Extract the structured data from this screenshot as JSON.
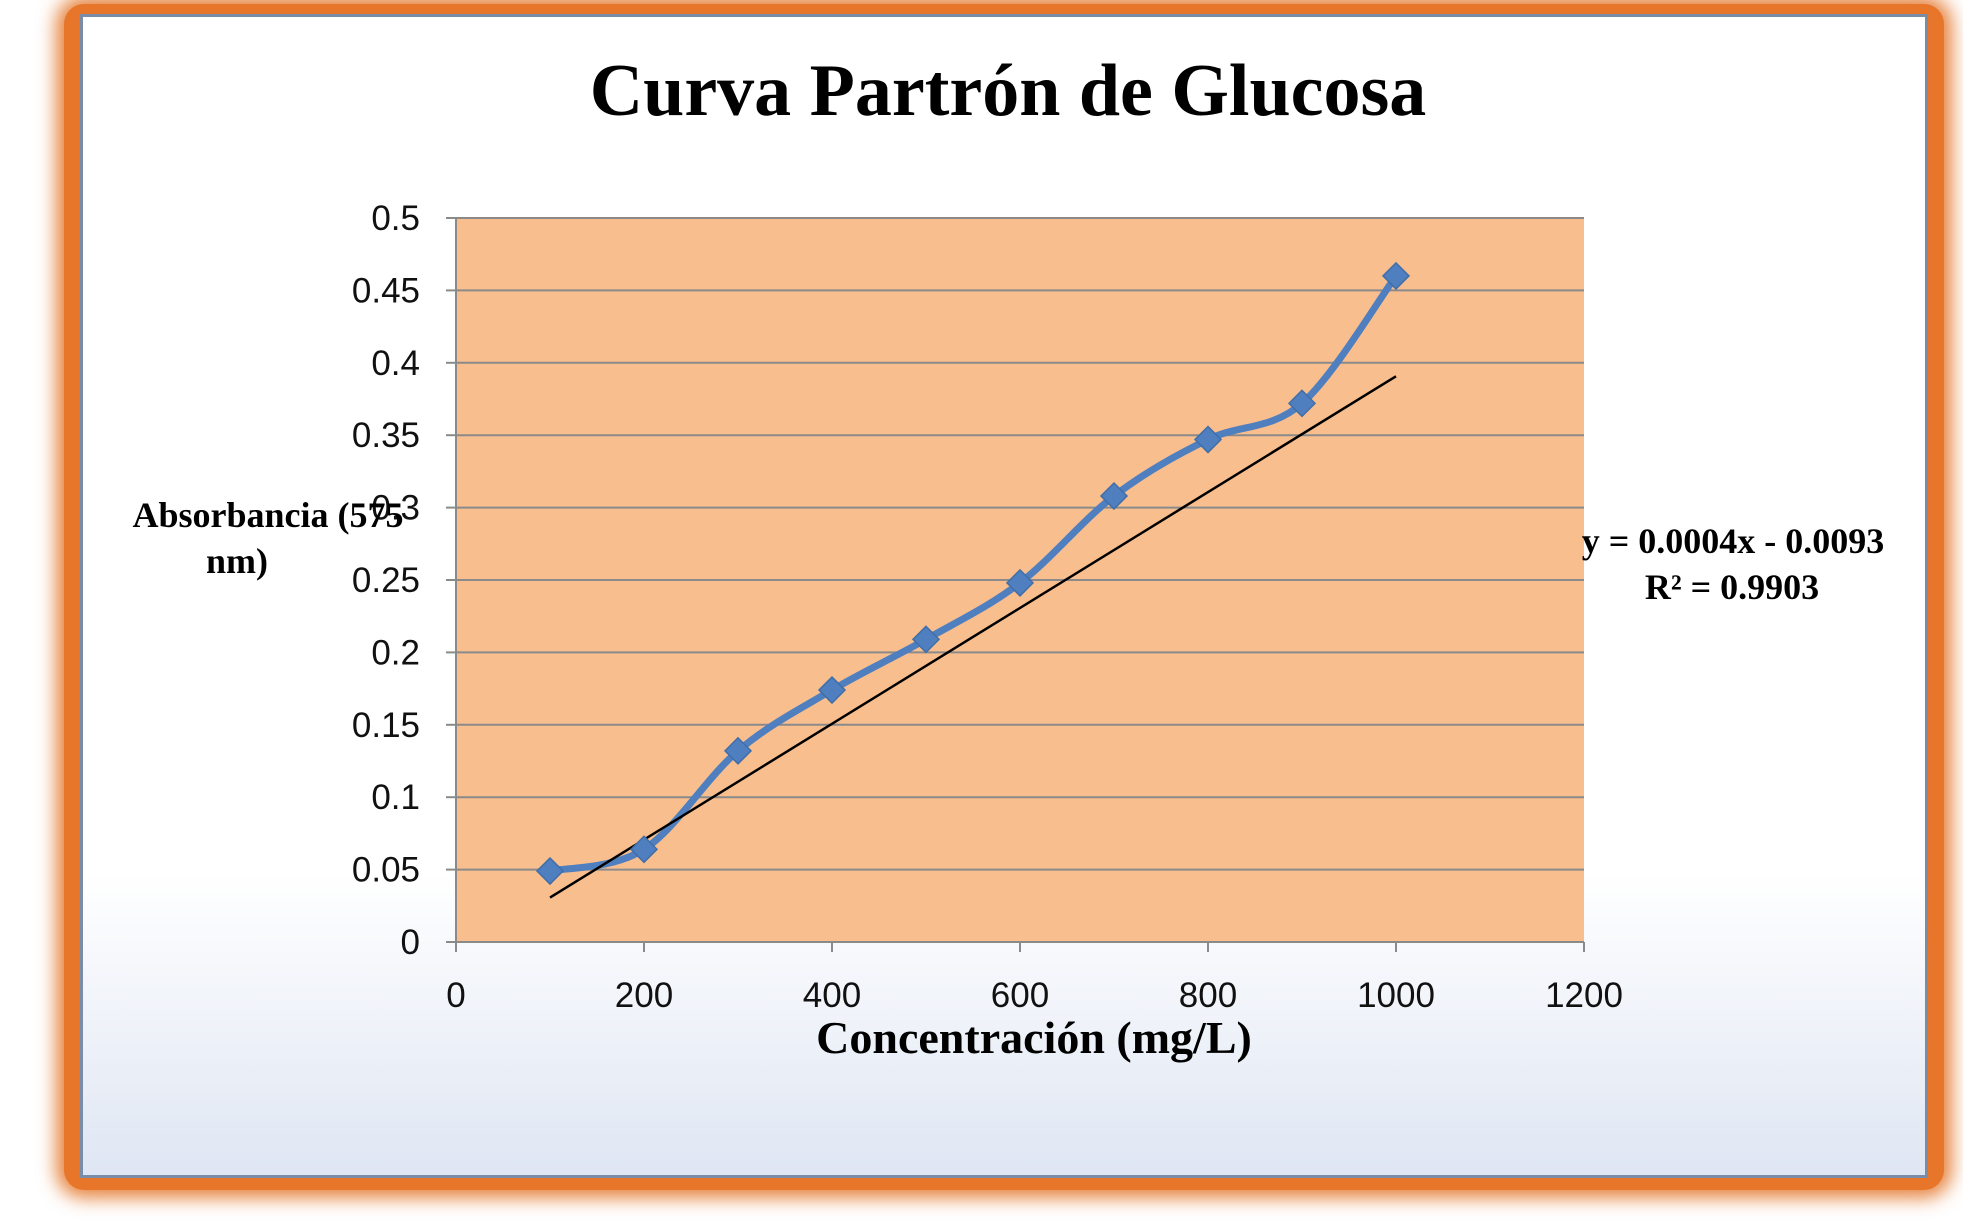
{
  "chart_data": {
    "type": "scatter",
    "title": "Curva Partrón de Glucosa",
    "xlabel": "Concentración (mg/L)",
    "ylabel_lines": [
      "Absorbancia (575",
      "nm)"
    ],
    "xlim": [
      0,
      1200
    ],
    "ylim": [
      0,
      0.5
    ],
    "x_ticks": [
      0,
      200,
      400,
      600,
      800,
      1000,
      1200
    ],
    "y_ticks": [
      0,
      0.05,
      0.1,
      0.15,
      0.2,
      0.25,
      0.3,
      0.35,
      0.4,
      0.45,
      0.5
    ],
    "y_tick_labels": [
      "0",
      "0.05",
      "0.1",
      "0.15",
      "0.2",
      "0.25",
      "0.3",
      "0.35",
      "0.4",
      "0.45",
      "0.5"
    ],
    "grid": "horizontal",
    "series": [
      {
        "x": [
          100,
          200,
          300,
          400,
          500,
          600,
          700,
          800,
          900,
          1000
        ],
        "y": [
          0.049,
          0.064,
          0.132,
          0.174,
          0.209,
          0.248,
          0.308,
          0.347,
          0.372,
          0.46
        ],
        "line": "smoothed",
        "marker": "diamond",
        "color": "#4f7fbf"
      }
    ],
    "trendline": {
      "type": "linear",
      "slope": 0.0004,
      "intercept": -0.0093,
      "x_range": [
        100,
        1000
      ],
      "color": "#000000",
      "equation": "y = 0.0004x - 0.0093",
      "r_squared": "R² = 0.9903"
    },
    "plot_background": "#f9be8e",
    "frame_color": "#e8762a"
  }
}
